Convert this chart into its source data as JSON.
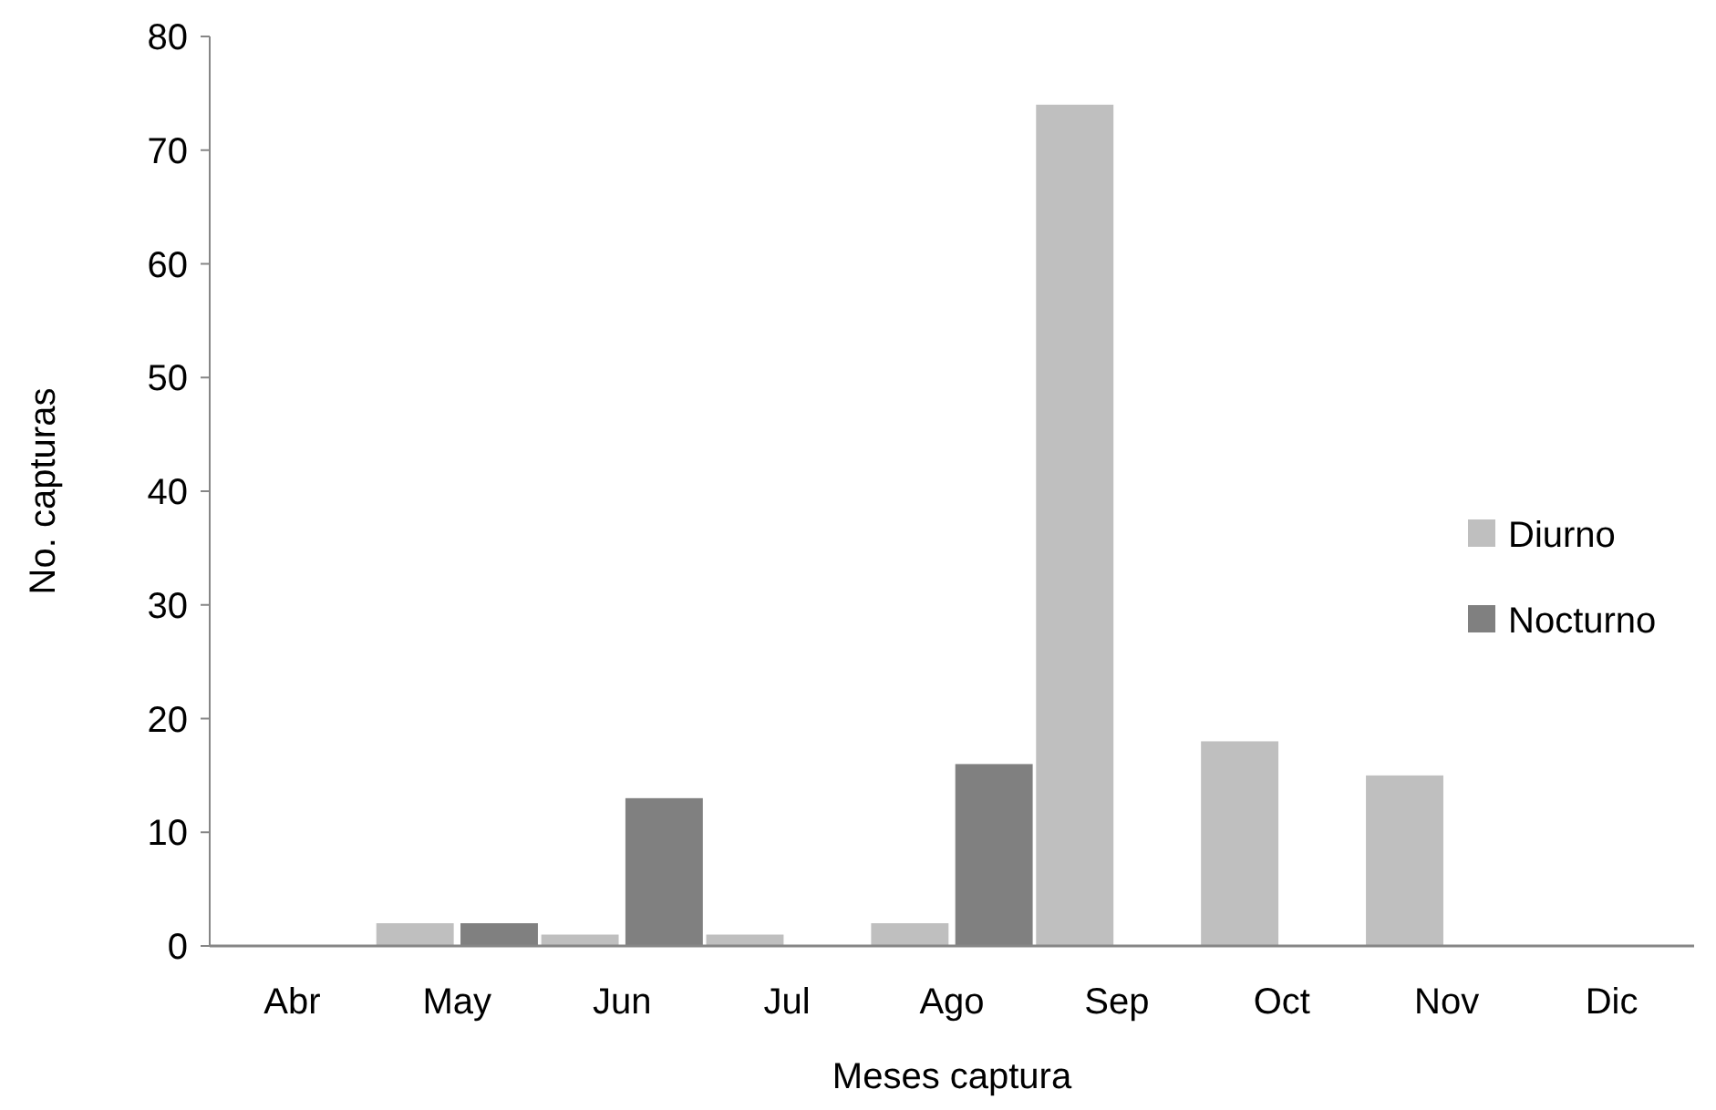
{
  "chart_data": {
    "type": "bar",
    "xlabel": "Meses captura",
    "ylabel": "No. capturas",
    "categories": [
      "Abr",
      "May",
      "Jun",
      "Jul",
      "Ago",
      "Sep",
      "Oct",
      "Nov",
      "Dic"
    ],
    "series": [
      {
        "name": "Diurno",
        "color": "#bfbfbf",
        "values": [
          0,
          2,
          1,
          1,
          2,
          74,
          18,
          15,
          0
        ]
      },
      {
        "name": "Nocturno",
        "color": "#808080",
        "values": [
          0,
          2,
          13,
          0,
          16,
          0,
          0,
          0,
          0
        ]
      }
    ],
    "ylim": [
      0,
      80
    ],
    "yticks": [
      0,
      10,
      20,
      30,
      40,
      50,
      60,
      70,
      80
    ],
    "grid": false,
    "legend": "right"
  }
}
